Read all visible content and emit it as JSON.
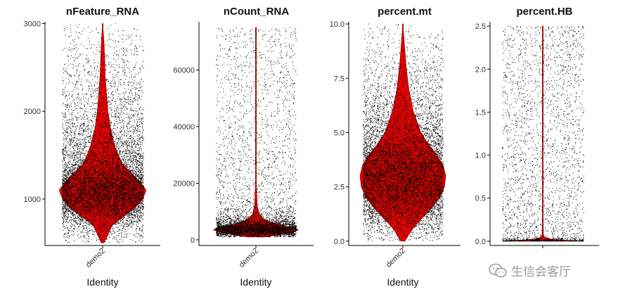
{
  "chart_data": [
    {
      "type": "violin",
      "title": "nFeature_RNA",
      "categories": [
        "demo2"
      ],
      "xlabel": "Identity",
      "ylabel": "",
      "ylim": [
        470,
        3020
      ],
      "yticks": [
        1000,
        2000,
        3000
      ],
      "violin": {
        "min": 500,
        "max": 3000,
        "median": 1100,
        "mode": 1100,
        "shape": [
          [
            500,
            0.03
          ],
          [
            700,
            0.22
          ],
          [
            900,
            0.75
          ],
          [
            1000,
            0.92
          ],
          [
            1100,
            1.0
          ],
          [
            1200,
            0.85
          ],
          [
            1400,
            0.45
          ],
          [
            1600,
            0.28
          ],
          [
            1800,
            0.18
          ],
          [
            2000,
            0.12
          ],
          [
            2400,
            0.06
          ],
          [
            2800,
            0.03
          ],
          [
            3000,
            0.0
          ]
        ]
      },
      "fill_color": "#e00000"
    },
    {
      "type": "violin",
      "title": "nCount_RNA",
      "categories": [
        "demo2"
      ],
      "xlabel": "Identity",
      "ylabel": "",
      "ylim": [
        -2000,
        77000
      ],
      "yticks": [
        0,
        20000,
        40000,
        60000
      ],
      "violin": {
        "min": 1000,
        "max": 75000,
        "median": 3800,
        "mode": 3800,
        "shape": [
          [
            1000,
            0.2
          ],
          [
            2000,
            0.6
          ],
          [
            3000,
            0.9
          ],
          [
            3800,
            1.0
          ],
          [
            5000,
            0.6
          ],
          [
            7000,
            0.2
          ],
          [
            9000,
            0.08
          ],
          [
            12000,
            0.03
          ],
          [
            20000,
            0.01
          ],
          [
            40000,
            0.005
          ],
          [
            75000,
            0.0
          ]
        ]
      },
      "fill_color": "#e00000"
    },
    {
      "type": "violin",
      "title": "percent.mt",
      "categories": [
        "demo2"
      ],
      "xlabel": "Identity",
      "ylabel": "",
      "ylim": [
        -0.2,
        10.1
      ],
      "yticks": [
        0.0,
        2.5,
        5.0,
        7.5,
        10.0
      ],
      "violin": {
        "min": 0.0,
        "max": 10.0,
        "median": 3.0,
        "mode": 3.0,
        "shape": [
          [
            0.0,
            0.05
          ],
          [
            0.5,
            0.2
          ],
          [
            1.0,
            0.42
          ],
          [
            1.5,
            0.66
          ],
          [
            2.0,
            0.86
          ],
          [
            2.5,
            0.97
          ],
          [
            3.0,
            1.0
          ],
          [
            3.5,
            0.94
          ],
          [
            4.0,
            0.78
          ],
          [
            4.5,
            0.58
          ],
          [
            5.0,
            0.42
          ],
          [
            6.0,
            0.24
          ],
          [
            7.0,
            0.14
          ],
          [
            8.0,
            0.08
          ],
          [
            9.0,
            0.04
          ],
          [
            10.0,
            0.0
          ]
        ]
      },
      "fill_color": "#e00000"
    },
    {
      "type": "violin",
      "title": "percent.HB",
      "categories": [
        "demo2"
      ],
      "xlabel": "",
      "ylabel": "",
      "ylim": [
        -0.05,
        2.55
      ],
      "yticks": [
        0.0,
        0.5,
        1.0,
        1.5,
        2.0,
        2.5
      ],
      "violin": {
        "min": 0.0,
        "max": 2.5,
        "median": 0.0,
        "mode": 0.0,
        "shape": [
          [
            0.0,
            1.0
          ],
          [
            0.01,
            0.3
          ],
          [
            0.05,
            0.02
          ],
          [
            0.3,
            0.004
          ],
          [
            2.5,
            0.0
          ]
        ]
      },
      "fill_color": "#e00000"
    }
  ],
  "watermark": {
    "text": "生信会客厅",
    "icon": "wechat-icon"
  }
}
